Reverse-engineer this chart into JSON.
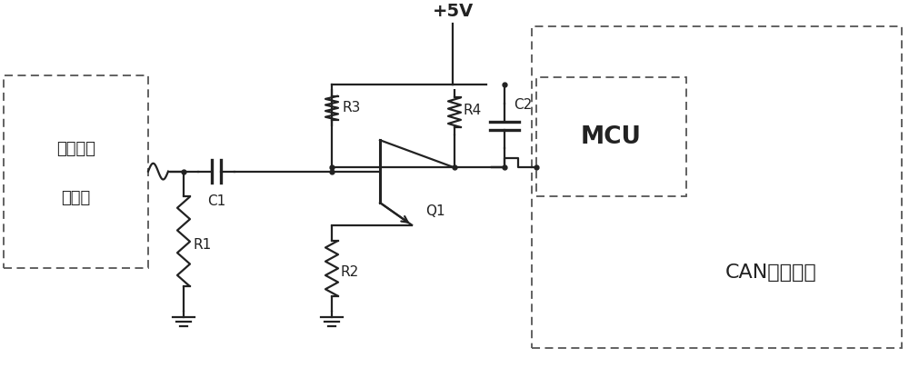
{
  "background_color": "#ffffff",
  "line_color": "#222222",
  "dashed_color": "#555555",
  "labels": {
    "vcc": "+5V",
    "r1": "R1",
    "r2": "R2",
    "r3": "R3",
    "r4": "R4",
    "c1": "C1",
    "c2": "C2",
    "q1": "Q1",
    "mcu": "MCU",
    "can": "CAN接口电路",
    "sensor_line1": "探头光电",
    "sensor_line2": "传感器"
  },
  "figsize": [
    10.0,
    4.05
  ],
  "dpi": 100,
  "xlim": [
    0,
    10
  ],
  "ylim": [
    0,
    4.05
  ]
}
